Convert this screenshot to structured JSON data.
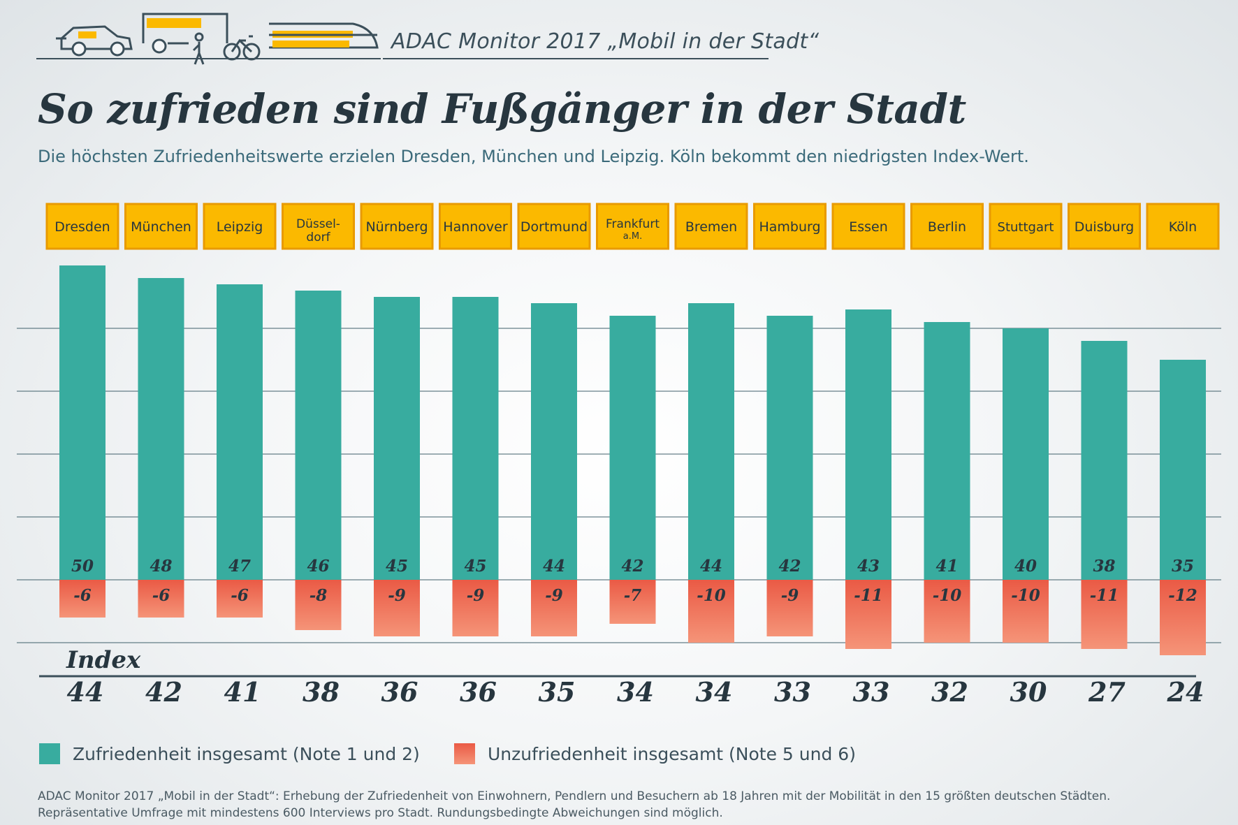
{
  "header": {
    "title": "ADAC Monitor 2017 „Mobil in der Stadt“",
    "icons": [
      "car-icon",
      "bus-icon",
      "pedestrian-icon",
      "bicycle-icon",
      "train-icon"
    ]
  },
  "title": "So zufrieden sind Fußgänger in der Stadt",
  "subtitle": "Die höchsten Zufriedenheitswerte erzielen Dresden, München und Leipzig. Köln bekommt den niedrigsten Index-Wert.",
  "colors": {
    "positive": "#38ac9f",
    "negative_top": "#ea5a45",
    "negative_bottom": "#f59478",
    "label_box": "#fbb900",
    "label_box_border": "#e89a00",
    "text_dark": "#27363f"
  },
  "chart_data": {
    "type": "bar",
    "categories": [
      [
        "Dresden"
      ],
      [
        "München"
      ],
      [
        "Leipzig"
      ],
      [
        "Düssel-",
        "dorf"
      ],
      [
        "Nürnberg"
      ],
      [
        "Hannover"
      ],
      [
        "Dortmund"
      ],
      [
        "Frankfurt",
        "a.M."
      ],
      [
        "Bremen"
      ],
      [
        "Hamburg"
      ],
      [
        "Essen"
      ],
      [
        "Berlin"
      ],
      [
        "Stuttgart"
      ],
      [
        "Duisburg"
      ],
      [
        "Köln"
      ]
    ],
    "series": [
      {
        "name": "Zufriedenheit insgesamt (Note 1 und 2)",
        "values": [
          50,
          48,
          47,
          46,
          45,
          45,
          44,
          42,
          44,
          42,
          43,
          41,
          40,
          38,
          35
        ]
      },
      {
        "name": "Unzufriedenheit insgesamt (Note 5 und 6)",
        "values": [
          -6,
          -6,
          -6,
          -8,
          -9,
          -9,
          -9,
          -7,
          -10,
          -9,
          -11,
          -10,
          -10,
          -11,
          -12
        ]
      }
    ],
    "index_label": "Index",
    "index": [
      44,
      42,
      41,
      38,
      36,
      36,
      35,
      34,
      34,
      33,
      33,
      32,
      30,
      27,
      24
    ],
    "ylim": [
      -12,
      50
    ],
    "grid": true
  },
  "legend": {
    "positive": "Zufriedenheit insgesamt (Note 1 und 2)",
    "negative": "Unzufriedenheit insgesamt (Note 5 und 6)"
  },
  "footnote": [
    "ADAC Monitor 2017 „Mobil in der Stadt“: Erhebung der Zufriedenheit von Einwohnern, Pendlern und Besuchern ab 18 Jahren mit der Mobilität in den 15 größten deutschen Städten.",
    "Repräsentative Umfrage mit mindestens 600 Interviews pro Stadt. Rundungsbedingte Abweichungen sind möglich."
  ]
}
